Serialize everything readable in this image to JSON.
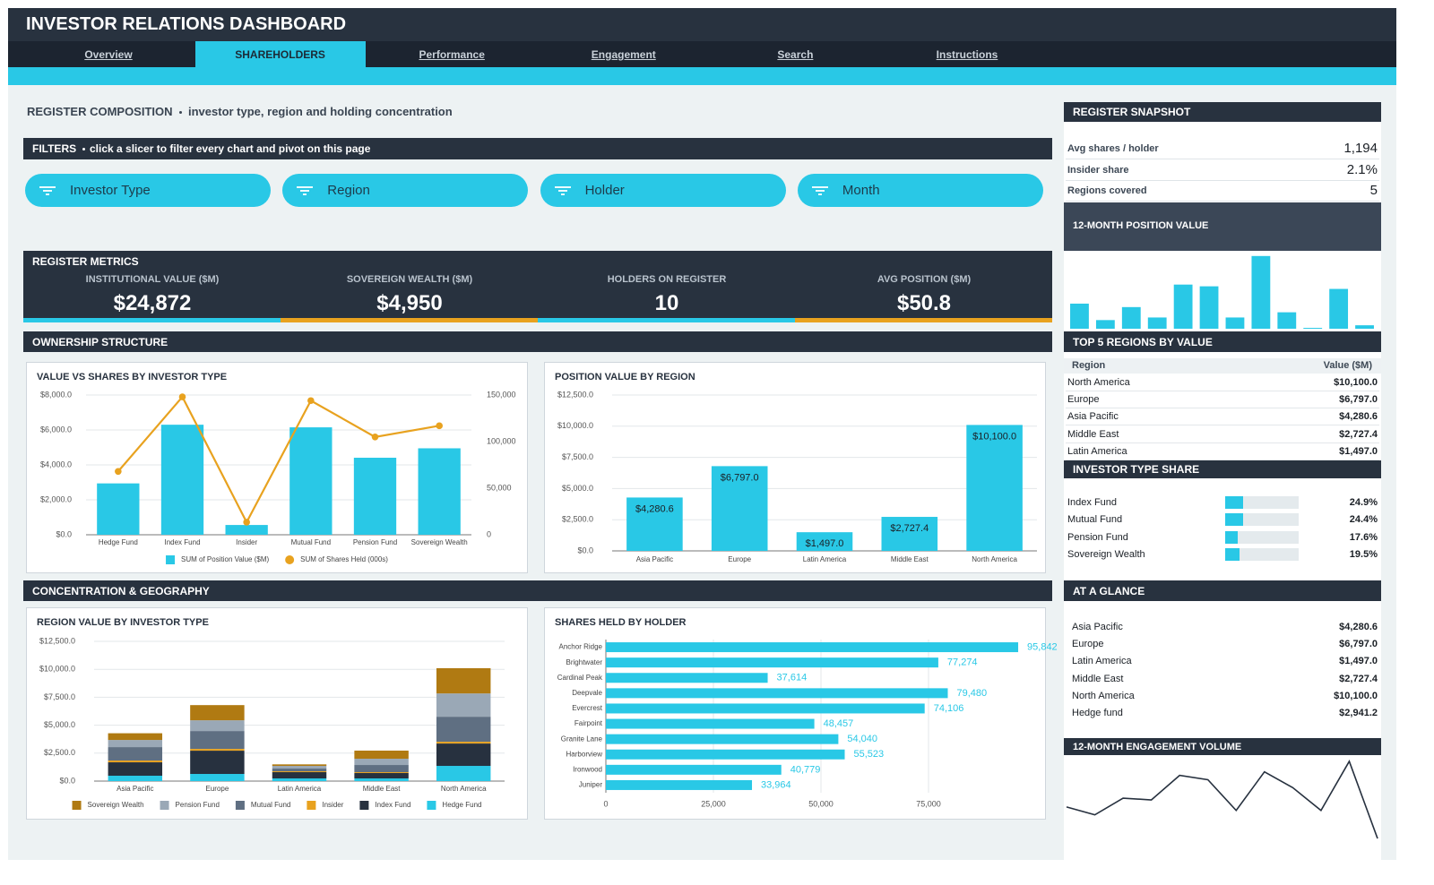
{
  "header": {
    "title": "INVESTOR RELATIONS DASHBOARD",
    "tabs": [
      "Overview",
      "SHAREHOLDERS",
      "Performance",
      "Engagement",
      "Search",
      "Instructions"
    ],
    "active_tab": 1
  },
  "heading": {
    "title": "REGISTER COMPOSITION",
    "subtitle": "investor type, region and holding concentration"
  },
  "filters": {
    "title": "FILTERS",
    "description": "click a slicer to filter every chart and pivot on this page",
    "slicers": [
      "Investor Type",
      "Region",
      "Holder",
      "Month"
    ]
  },
  "metrics": {
    "title": "REGISTER METRICS",
    "cards": [
      {
        "label": "INSTITUTIONAL VALUE ($M)",
        "value": "$24,872"
      },
      {
        "label": "SOVEREIGN WEALTH ($M)",
        "value": "$4,950"
      },
      {
        "label": "HOLDERS ON REGISTER",
        "value": "10"
      },
      {
        "label": "AVG POSITION ($M)",
        "value": "$50.8"
      }
    ]
  },
  "sections": [
    "OWNERSHIP STRUCTURE",
    "CONCENTRATION & GEOGRAPHY"
  ],
  "chart_data": [
    {
      "type": "combo",
      "title": "VALUE VS SHARES BY INVESTOR TYPE",
      "categories": [
        "Hedge Fund",
        "Index Fund",
        "Insider",
        "Mutual Fund",
        "Pension Fund",
        "Sovereign Wealth"
      ],
      "series": [
        {
          "name": "SUM of Position Value ($M)",
          "type": "bar",
          "color": "#29c8e6",
          "values": [
            2941.2,
            6300,
            560,
            6150,
            4410,
            4950
          ]
        },
        {
          "name": "SUM of Shares Held (000s)",
          "type": "line",
          "axis": "y2",
          "color": "#e8a21f",
          "values": [
            68000,
            148000,
            13500,
            144000,
            105000,
            117000
          ]
        }
      ],
      "ylim": [
        0,
        8000
      ],
      "yticks": [
        {
          "value": 0,
          "label": "$0.0"
        },
        {
          "value": 2000,
          "label": "$2,000.0"
        },
        {
          "value": 4000,
          "label": "$4,000.0"
        },
        {
          "value": 6000,
          "label": "$6,000.0"
        },
        {
          "value": 8000,
          "label": "$8,000.0"
        }
      ],
      "y2lim": [
        0,
        150000
      ],
      "y2ticks": [
        0,
        {
          "value": 50000,
          "label": "50,000"
        },
        {
          "value": 100000,
          "label": "100,000"
        },
        {
          "value": 150000,
          "label": "150,000"
        }
      ],
      "grid": true,
      "legend": "bottom"
    },
    {
      "type": "bar",
      "title": "POSITION VALUE BY REGION",
      "categories": [
        "Asia Pacific",
        "Europe",
        "Latin America",
        "Middle East",
        "North America"
      ],
      "values": [
        4280.6,
        6797.0,
        1497.0,
        2727.4,
        10100.0
      ],
      "value_labels": [
        "$4,280.6",
        "$6,797.0",
        "$1,497.0",
        "$2,727.4",
        "$10,100.0"
      ],
      "color": "#29c8e6",
      "ylim": [
        0,
        12500
      ],
      "yticks": [
        {
          "value": 0,
          "label": "$0.0"
        },
        {
          "value": 2500,
          "label": "$2,500.0"
        },
        {
          "value": 5000,
          "label": "$5,000.0"
        },
        {
          "value": 7500,
          "label": "$7,500.0"
        },
        {
          "value": 10000,
          "label": "$10,000.0"
        },
        {
          "value": 12500,
          "label": "$12,500.0"
        }
      ],
      "grid": true
    },
    {
      "type": "stacked_bar",
      "title": "REGION VALUE BY INVESTOR TYPE",
      "categories": [
        "Asia Pacific",
        "Europe",
        "Latin America",
        "Middle East",
        "North America"
      ],
      "series": [
        {
          "name": "Hedge Fund",
          "color": "#29c8e6",
          "values": [
            480,
            640,
            240,
            240,
            1360
          ]
        },
        {
          "name": "Index Fund",
          "color": "#27313f",
          "values": [
            1200,
            2080,
            560,
            480,
            2000
          ]
        },
        {
          "name": "Insider",
          "color": "#e8a21f",
          "values": [
            160,
            160,
            80,
            80,
            160
          ]
        },
        {
          "name": "Mutual Fund",
          "color": "#5f6f82",
          "values": [
            1200,
            1600,
            240,
            640,
            2240
          ]
        },
        {
          "name": "Pension Fund",
          "color": "#9aa8b6",
          "values": [
            640,
            960,
            240,
            560,
            2080
          ]
        },
        {
          "name": "Sovereign Wealth",
          "color": "#b07a12",
          "values": [
            600,
            1357,
            137,
            727,
            2260
          ]
        }
      ],
      "ylim": [
        0,
        12500
      ],
      "yticks": [
        {
          "value": 0,
          "label": "$0.0"
        },
        {
          "value": 2500,
          "label": "$2,500.0"
        },
        {
          "value": 5000,
          "label": "$5,000.0"
        },
        {
          "value": 7500,
          "label": "$7,500.0"
        },
        {
          "value": 10000,
          "label": "$10,000.0"
        },
        {
          "value": 12500,
          "label": "$12,500.0"
        }
      ],
      "grid": true,
      "legend": "bottom"
    },
    {
      "type": "barh",
      "title": "SHARES HELD BY HOLDER",
      "categories": [
        "Anchor Ridge",
        "Brightwater",
        "Cardinal Peak",
        "Deepvale",
        "Evercrest",
        "Fairpoint",
        "Granite Lane",
        "Harborview",
        "Ironwood",
        "Juniper"
      ],
      "values": [
        95842,
        77274,
        37614,
        79480,
        74106,
        48457,
        54040,
        55523,
        40779,
        33964
      ],
      "value_labels": [
        "95,842",
        "77,274",
        "37,614",
        "79,480",
        "74,106",
        "48,457",
        "54,040",
        "55,523",
        "40,779",
        "33,964"
      ],
      "color": "#29c8e6",
      "xlim": [
        0,
        100000
      ],
      "xticks": [
        0,
        {
          "value": 25000,
          "label": "25,000"
        },
        {
          "value": 50000,
          "label": "50,000"
        },
        {
          "value": 75000,
          "label": "75,000"
        }
      ],
      "grid": true
    },
    {
      "type": "bar",
      "title": "12-MONTH POSITION VALUE",
      "values": [
        29,
        10,
        25,
        13,
        51,
        49,
        13,
        84,
        19,
        1,
        46,
        4
      ],
      "color": "#29c8e6",
      "ylim": [
        0,
        90
      ]
    },
    {
      "type": "line",
      "title": "12-MONTH ENGAGEMENT VOLUME",
      "values": [
        40,
        31,
        50,
        48,
        76,
        71,
        36,
        80,
        62,
        36,
        92,
        4
      ],
      "color": "#27313f",
      "ylim": [
        0,
        95
      ]
    }
  ],
  "sidebar": {
    "snapshot": {
      "title": "REGISTER SNAPSHOT",
      "rows": [
        {
          "label": "Avg shares / holder",
          "value": "1,194"
        },
        {
          "label": "Insider share",
          "value": "2.1%"
        },
        {
          "label": "Regions covered",
          "value": "5"
        }
      ]
    },
    "top_regions": {
      "title": "TOP 5 REGIONS BY VALUE",
      "columns": [
        "Region",
        "Value ($M)"
      ],
      "rows": [
        {
          "region": "North America",
          "value": "$10,100.0"
        },
        {
          "region": "Europe",
          "value": "$6,797.0"
        },
        {
          "region": "Asia Pacific",
          "value": "$4,280.6"
        },
        {
          "region": "Middle East",
          "value": "$2,727.4"
        },
        {
          "region": "Latin America",
          "value": "$1,497.0"
        }
      ]
    },
    "type_share": {
      "title": "INVESTOR TYPE SHARE",
      "categories": [
        "Index Fund",
        "Mutual Fund",
        "Pension Fund",
        "Sovereign Wealth"
      ],
      "values": [
        24.9,
        24.4,
        17.6,
        19.5
      ],
      "value_labels": [
        "24.9%",
        "24.4%",
        "17.6%",
        "19.5%"
      ],
      "xlim": [
        0,
        100
      ],
      "color": "#29c8e6"
    },
    "glance": {
      "title": "AT A GLANCE",
      "rows": [
        {
          "label": "Asia Pacific",
          "value": "$4,280.6"
        },
        {
          "label": "Europe",
          "value": "$6,797.0"
        },
        {
          "label": "Latin America",
          "value": "$1,497.0"
        },
        {
          "label": "Middle East",
          "value": "$2,727.4"
        },
        {
          "label": "North America",
          "value": "$10,100.0"
        },
        {
          "label": "Hedge fund",
          "value": "$2,941.2"
        }
      ]
    }
  }
}
